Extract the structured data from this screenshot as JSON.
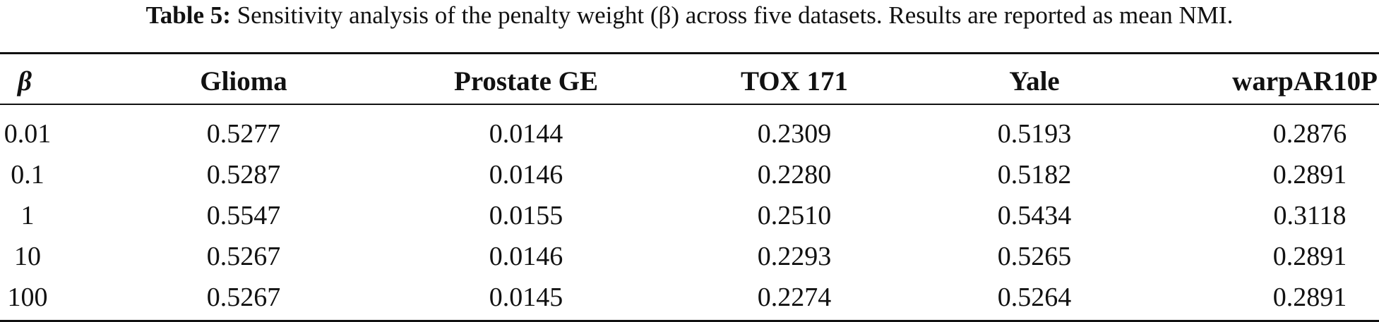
{
  "caption": {
    "label": "Table 5:",
    "text": " Sensitivity analysis of the penalty weight (β) across five datasets. Results are reported as mean NMI."
  },
  "table": {
    "headers": [
      "β",
      "Glioma",
      "Prostate GE",
      "TOX 171",
      "Yale",
      "warpAR10P"
    ],
    "rows": [
      [
        "0.01",
        "0.5277",
        "0.0144",
        "0.2309",
        "0.5193",
        "0.2876"
      ],
      [
        "0.1",
        "0.5287",
        "0.0146",
        "0.2280",
        "0.5182",
        "0.2891"
      ],
      [
        "1",
        "0.5547",
        "0.0155",
        "0.2510",
        "0.5434",
        "0.3118"
      ],
      [
        "10",
        "0.5267",
        "0.0146",
        "0.2293",
        "0.5265",
        "0.2891"
      ],
      [
        "100",
        "0.5267",
        "0.0145",
        "0.2274",
        "0.5264",
        "0.2891"
      ]
    ]
  }
}
